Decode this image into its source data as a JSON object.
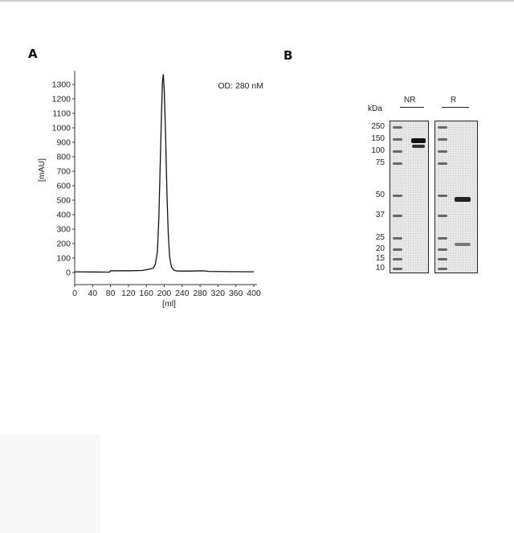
{
  "panels": {
    "a_letter": "A",
    "b_letter": "B"
  },
  "chart_data": {
    "type": "line",
    "annotation": "OD: 280 nM",
    "xlabel": "[ml]",
    "ylabel": "[mAU]",
    "xlim": [
      0,
      400
    ],
    "ylim": [
      -50,
      1400
    ],
    "xticks": [
      0,
      40,
      80,
      120,
      160,
      200,
      240,
      280,
      320,
      360,
      400
    ],
    "yticks": [
      0,
      100,
      200,
      300,
      400,
      500,
      600,
      700,
      800,
      900,
      1000,
      1100,
      1200,
      1300
    ],
    "series": [
      {
        "x": [
          0,
          40,
          78,
          80,
          120,
          150,
          165,
          175,
          180,
          185,
          188,
          191,
          194,
          196,
          198,
          200,
          203,
          206,
          209,
          212,
          216,
          222,
          230,
          260,
          285,
          300,
          340,
          400
        ],
        "y": [
          5,
          4,
          3,
          12,
          12,
          14,
          22,
          30,
          55,
          150,
          380,
          750,
          1120,
          1320,
          1370,
          1260,
          950,
          560,
          270,
          110,
          40,
          15,
          10,
          10,
          12,
          8,
          6,
          5
        ]
      }
    ],
    "color": "#111111"
  },
  "gel": {
    "unit_label": "kDa",
    "lane_labels": [
      "NR",
      "R"
    ],
    "markers": [
      "250",
      "150",
      "100",
      "75",
      "50",
      "37",
      "25",
      "20",
      "15",
      "10"
    ]
  }
}
